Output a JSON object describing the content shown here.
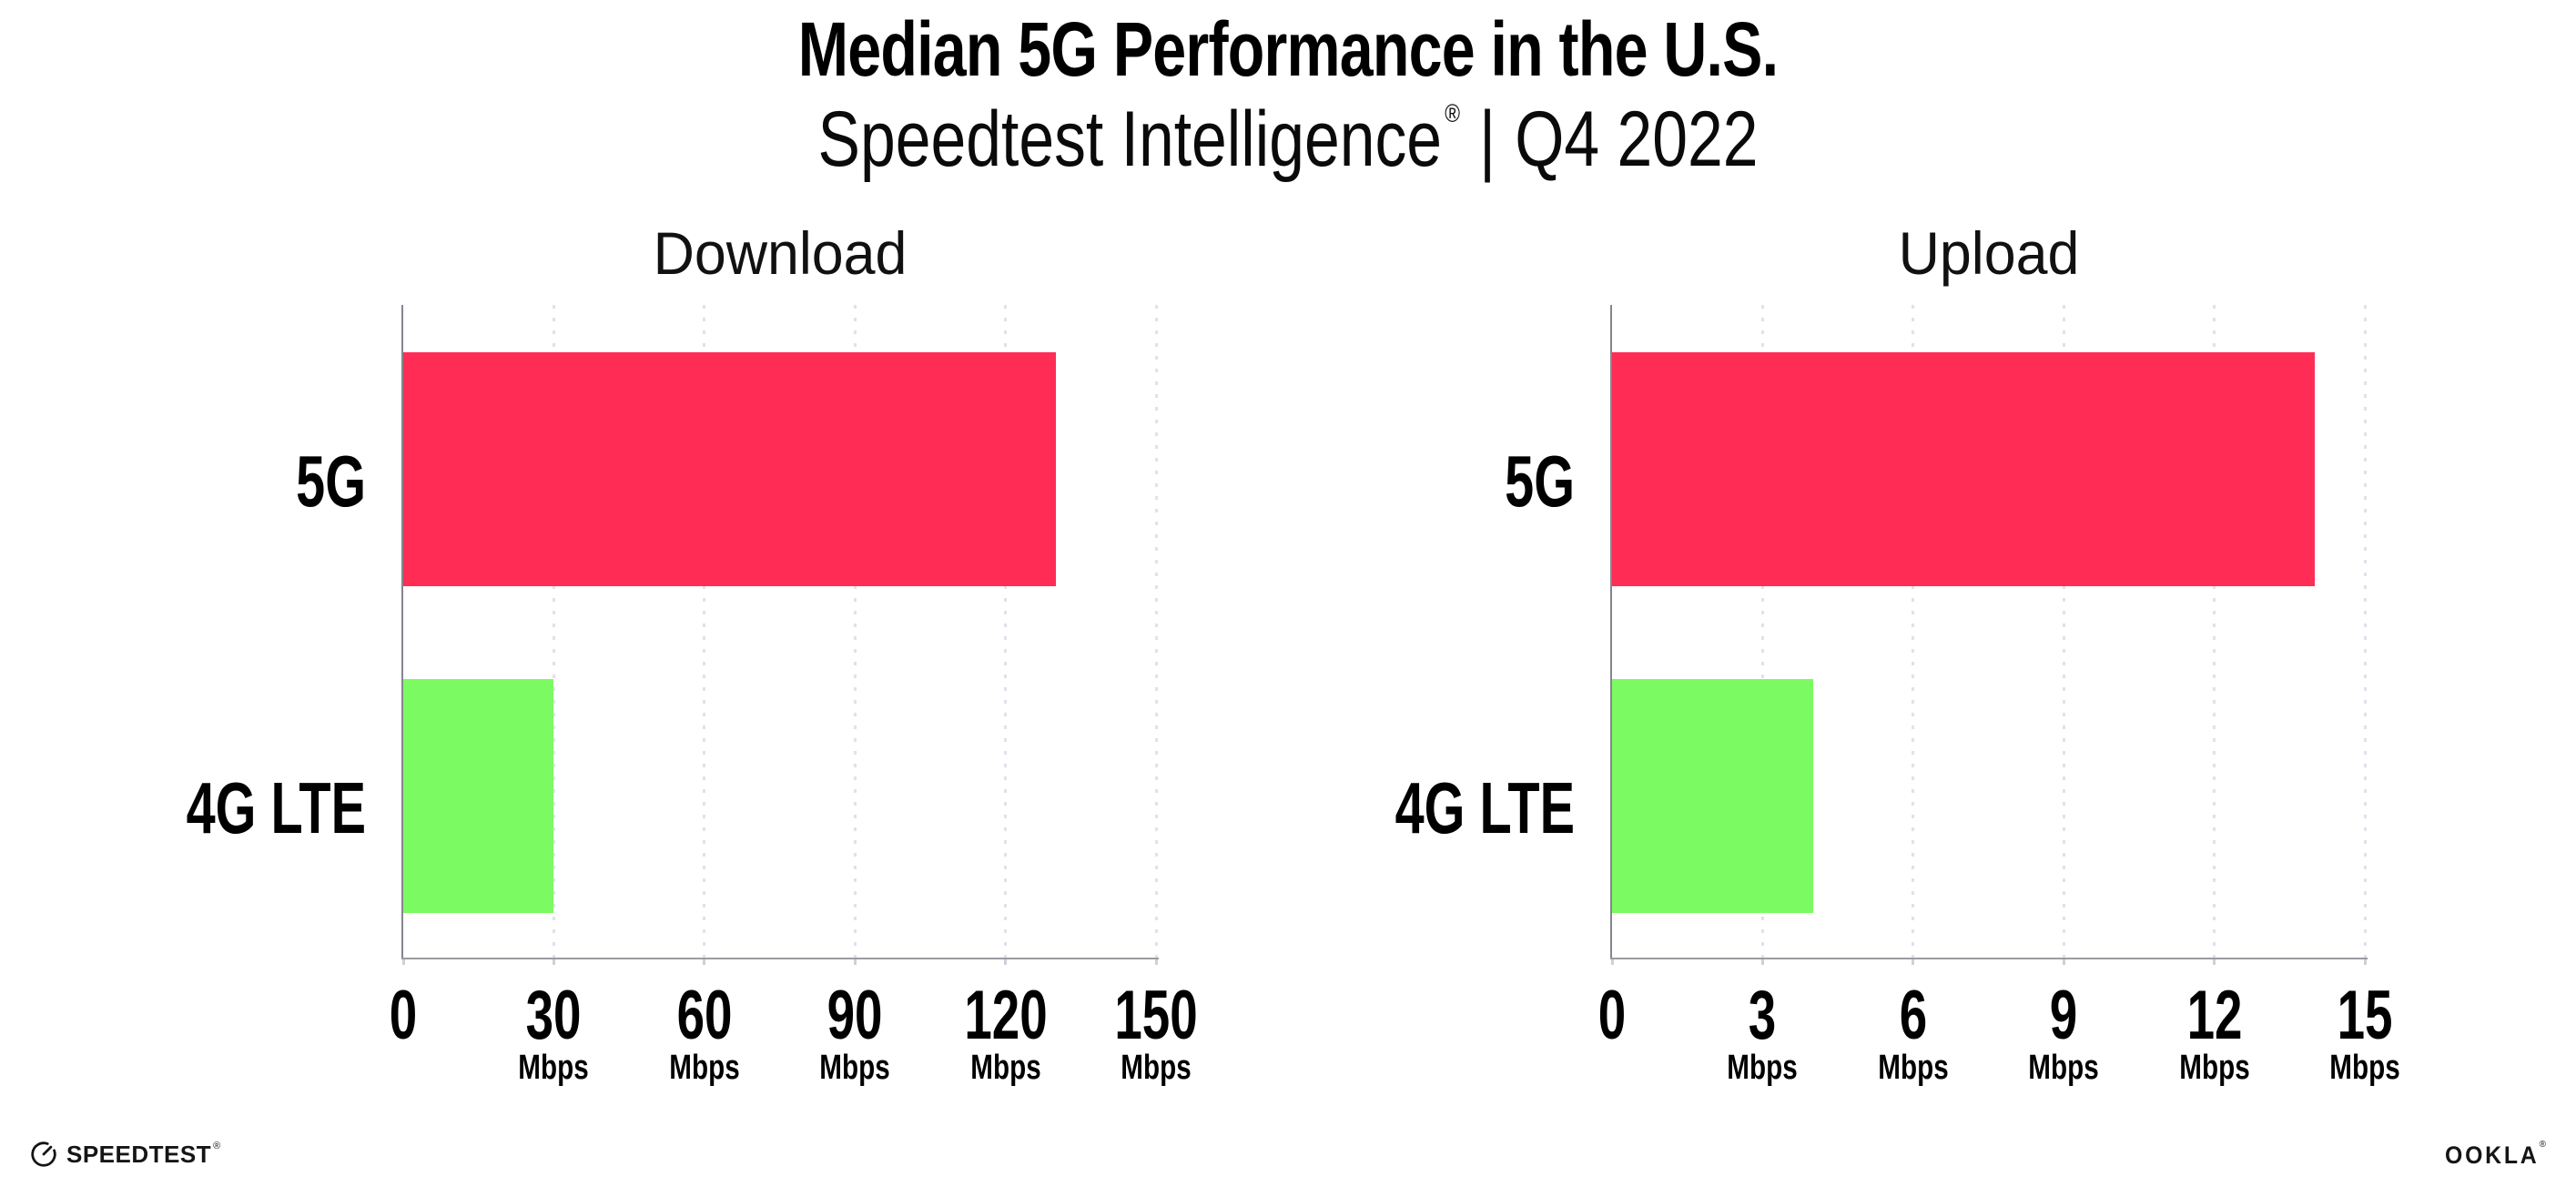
{
  "header": {
    "title": "Median 5G Performance in the U.S.",
    "subtitle_brand": "Speedtest Intelligence",
    "registered_mark": "®",
    "separator": "|",
    "period": "Q4 2022"
  },
  "chart_data": [
    {
      "type": "bar",
      "orientation": "horizontal",
      "title": "Download",
      "categories": [
        "5G",
        "4G LTE"
      ],
      "values": [
        130,
        30
      ],
      "unit": "Mbps",
      "xlim": [
        0,
        150
      ],
      "xticks": [
        0,
        30,
        60,
        90,
        120,
        150
      ],
      "bar_colors": [
        "#ff2d55",
        "#7cfa62"
      ],
      "grid": "dotted-vertical",
      "legend": "none"
    },
    {
      "type": "bar",
      "orientation": "horizontal",
      "title": "Upload",
      "categories": [
        "5G",
        "4G LTE"
      ],
      "values": [
        14,
        4
      ],
      "unit": "Mbps",
      "xlim": [
        0,
        15
      ],
      "xticks": [
        0,
        3,
        6,
        9,
        12,
        15
      ],
      "bar_colors": [
        "#ff2d55",
        "#7cfa62"
      ],
      "grid": "dotted-vertical",
      "legend": "none"
    }
  ],
  "footer": {
    "speedtest_label": "SPEEDTEST",
    "speedtest_mark": "®",
    "ookla_label": "OOKLA",
    "ookla_mark": "®"
  },
  "colors": {
    "bar_5g": "#ff2d55",
    "bar_4g_lte": "#7cfa62",
    "axis": "#9b9ba1",
    "gridline": "#e1e1ea",
    "text": "#000000"
  }
}
